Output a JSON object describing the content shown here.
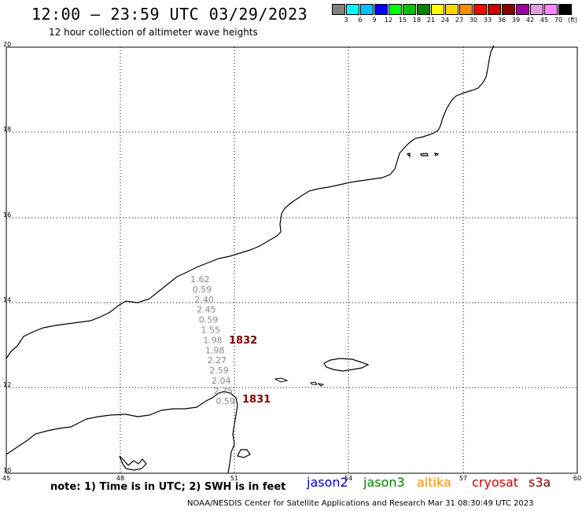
{
  "header": {
    "title": "12:00 — 23:59 UTC 03/29/2023",
    "subtitle": "12 hour collection of altimeter wave heights"
  },
  "legend": {
    "colors": [
      "#808080",
      "#00ffff",
      "#00bfff",
      "#0000ff",
      "#00ff00",
      "#00c800",
      "#008000",
      "#ffff00",
      "#ffd700",
      "#ff8c00",
      "#ff0000",
      "#cc0000",
      "#8b0000",
      "#a000a0",
      "#dda0dd",
      "#ff88ff",
      "#000000"
    ],
    "labels": [
      "3",
      "6",
      "9",
      "12",
      "15",
      "18",
      "21",
      "24",
      "27",
      "30",
      "33",
      "36",
      "39",
      "42",
      "45",
      "70",
      "(ft)"
    ]
  },
  "axes": {
    "x_ticks": [
      "45",
      "48",
      "51",
      "54",
      "57",
      "60"
    ],
    "y_ticks": [
      "20",
      "18",
      "16",
      "14",
      "12",
      "10"
    ]
  },
  "wave_heights": [
    "1.62",
    "0.59",
    "2.40",
    "2.45",
    "0.59",
    "1.55",
    "1.98",
    "1.98",
    "2.27",
    "2.59",
    "2.04",
    "2.75",
    "0.59"
  ],
  "pass_labels": [
    "1832",
    "1831"
  ],
  "footer": {
    "note": "note: 1) Time is in UTC; 2) SWH is in feet",
    "satellites": [
      {
        "name": "jason2",
        "color": "#0000cc"
      },
      {
        "name": "jason3",
        "color": "#008000"
      },
      {
        "name": "altika",
        "color": "#ff8c00"
      },
      {
        "name": "cryosat",
        "color": "#cc0000"
      },
      {
        "name": "s3a",
        "color": "#7a0000"
      }
    ],
    "credit": "NOAA/NESDIS Center for Satellite Applications and Research    Mar 31 08:30:49 UTC 2023"
  }
}
